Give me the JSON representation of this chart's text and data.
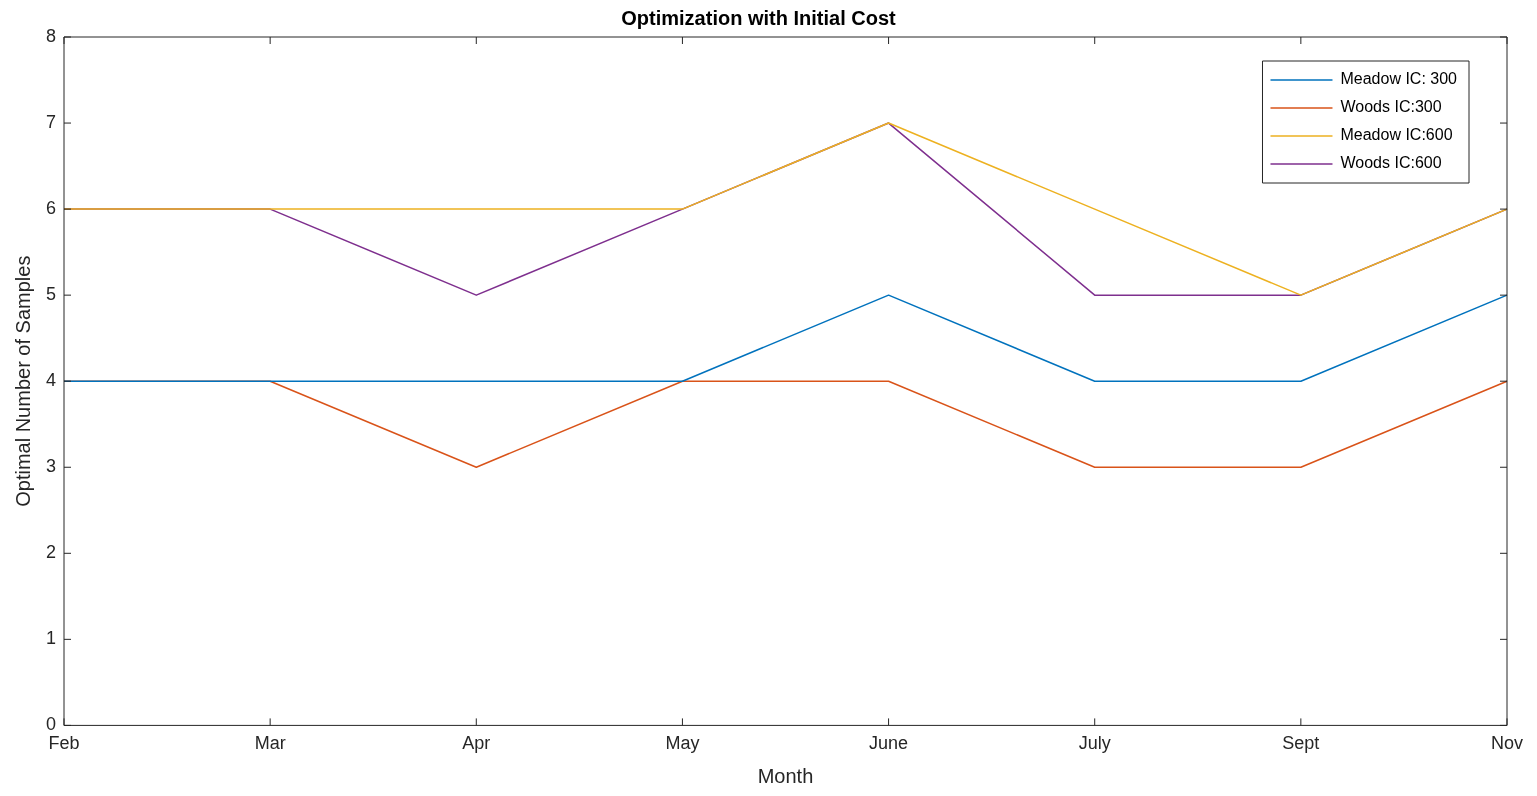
{
  "chart_data": {
    "type": "line",
    "title": "Optimization with Initial Cost",
    "xlabel": "Month",
    "ylabel": "Optimal Number of Samples",
    "categories": [
      "Feb",
      "Mar",
      "Apr",
      "May",
      "June",
      "July",
      "Sept",
      "Nov"
    ],
    "series": [
      {
        "name": "Meadow IC: 300",
        "color": "#0072bd",
        "values": [
          4,
          4,
          4,
          4,
          5,
          4,
          4,
          5
        ]
      },
      {
        "name": "Woods IC:300",
        "color": "#d95319",
        "values": [
          4,
          4,
          3,
          4,
          4,
          3,
          3,
          4
        ]
      },
      {
        "name": "Meadow IC:600",
        "color": "#edb120",
        "values": [
          6,
          6,
          6,
          6,
          7,
          6,
          5,
          6
        ]
      },
      {
        "name": "Woods IC:600",
        "color": "#7e2f8e",
        "values": [
          6,
          6,
          5,
          6,
          7,
          5,
          5,
          6
        ]
      }
    ],
    "ylim": [
      0,
      8
    ],
    "yticks": [
      0,
      1,
      2,
      3,
      4,
      5,
      6,
      7,
      8
    ],
    "grid": false,
    "legend": "top right",
    "marker": "none",
    "line_style": "solid"
  }
}
